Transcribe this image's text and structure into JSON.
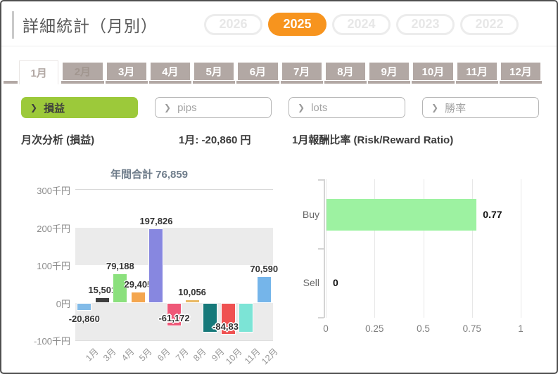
{
  "page": {
    "title": "詳細統計（月別）"
  },
  "colors": {
    "accent_orange": "#f7941e",
    "metric_green": "#9cc93a",
    "tab_taupe": "#b2a8a4",
    "buy_bar_green": "#9df2a1"
  },
  "icons": {
    "chevron": "❯"
  },
  "year_tabs": [
    {
      "label": "2026",
      "selected": false
    },
    {
      "label": "2025",
      "selected": true
    },
    {
      "label": "2024",
      "selected": false
    },
    {
      "label": "2023",
      "selected": false
    },
    {
      "label": "2022",
      "selected": false
    }
  ],
  "month_tabs": [
    {
      "label": "1月",
      "state": "selected"
    },
    {
      "label": "2月",
      "state": "disabled"
    },
    {
      "label": "3月",
      "state": "normal"
    },
    {
      "label": "4月",
      "state": "normal"
    },
    {
      "label": "5月",
      "state": "normal"
    },
    {
      "label": "6月",
      "state": "normal"
    },
    {
      "label": "7月",
      "state": "normal"
    },
    {
      "label": "8月",
      "state": "normal"
    },
    {
      "label": "9月",
      "state": "normal"
    },
    {
      "label": "10月",
      "state": "normal"
    },
    {
      "label": "11月",
      "state": "normal"
    },
    {
      "label": "12月",
      "state": "normal"
    }
  ],
  "metric_buttons": [
    {
      "label": "損益",
      "selected": true
    },
    {
      "label": "pips",
      "selected": false
    },
    {
      "label": "lots",
      "selected": false
    },
    {
      "label": "勝率",
      "selected": false
    }
  ],
  "section": {
    "left_title": "月次分析 (損益)",
    "month_value": "1月: -20,860 円",
    "right_title": "1月報酬比率 (Risk/Reward Ratio)"
  },
  "chart_data": [
    {
      "type": "bar",
      "title": "年間合計 76,859",
      "annual_total": 76859,
      "categories": [
        "1月",
        "3月",
        "4月",
        "5月",
        "6月",
        "7月",
        "8月",
        "9月",
        "10月",
        "11月",
        "12月"
      ],
      "values": [
        -20860,
        15501,
        79188,
        29405,
        197826,
        -61172,
        10056,
        -79422,
        -84831,
        -79422,
        70590
      ],
      "labels": [
        "-20,860",
        "15,501",
        "79,188",
        "29,405",
        "197,826",
        "-61,172",
        "10,056",
        "",
        "-84,831",
        "",
        "70,590"
      ],
      "colors": [
        "#82bbe8",
        "#3f3f3f",
        "#8be07d",
        "#f4a64f",
        "#8787e0",
        "#ef5878",
        "#e9b964",
        "#17797a",
        "#ef5151",
        "#7ce4d6",
        "#75b5ea"
      ],
      "y_ticks": [
        "300千円",
        "200千円",
        "100千円",
        "0円",
        "-100千円"
      ],
      "ylim": [
        -100000,
        300000
      ],
      "unit": "千円",
      "grid": "alternating-bands"
    },
    {
      "type": "bar-horizontal",
      "title": "Risk/Reward Ratio",
      "categories": [
        "Buy",
        "Sell"
      ],
      "values": [
        0.77,
        0
      ],
      "labels": [
        "0.77",
        "0"
      ],
      "x_ticks": [
        "0",
        "0.25",
        "0.5",
        "0.75",
        "1"
      ],
      "xlim": [
        0,
        1
      ],
      "bar_color": "#9df2a1",
      "grid": "vertical"
    }
  ]
}
